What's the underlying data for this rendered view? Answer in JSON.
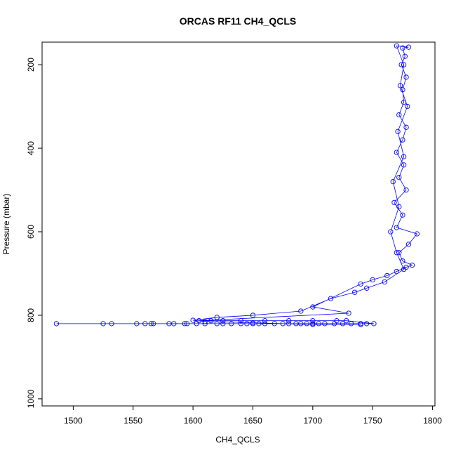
{
  "chart_data": {
    "type": "scatter-line",
    "title": "ORCAS RF11 CH4_QCLS",
    "x_label": "CH4_QCLS",
    "y_label": "Pressure (mbar)",
    "color": "#0000ff",
    "x": [
      1486,
      1525,
      1532,
      1553,
      1560,
      1565,
      1567,
      1580,
      1584,
      1593,
      1595,
      1603,
      1610,
      1620,
      1625,
      1632,
      1640,
      1645,
      1650,
      1655,
      1660,
      1668,
      1675,
      1680,
      1686,
      1690,
      1695,
      1700,
      1705,
      1710,
      1718,
      1725,
      1732,
      1740,
      1745,
      1751,
      1728,
      1720,
      1700,
      1680,
      1660,
      1640,
      1625,
      1615,
      1605,
      1730,
      1700,
      1740,
      1750,
      1762,
      1770,
      1778,
      1783,
      1775,
      1772,
      1780,
      1787,
      1770,
      1775,
      1768,
      1778,
      1772,
      1776,
      1770,
      1775,
      1778,
      1772,
      1776,
      1775,
      1778,
      1774,
      1777,
      1775,
      1780,
      1770,
      1776,
      1773,
      1779,
      1771,
      1776,
      1767,
      1772,
      1765,
      1770,
      1776,
      1760,
      1745,
      1735,
      1715,
      1690,
      1650,
      1620,
      1600,
      1610,
      1650,
      1700,
      1740
    ],
    "values": [
      820,
      820,
      820,
      820,
      820,
      820,
      820,
      820,
      820,
      820,
      820,
      820,
      820,
      820,
      820,
      820,
      820,
      820,
      820,
      820,
      820,
      820,
      820,
      820,
      820,
      820,
      820,
      820,
      820,
      820,
      820,
      820,
      820,
      820,
      820,
      820,
      813,
      813,
      813,
      813,
      813,
      813,
      813,
      813,
      813,
      795,
      780,
      725,
      715,
      705,
      695,
      685,
      680,
      670,
      650,
      630,
      605,
      590,
      560,
      530,
      500,
      470,
      440,
      410,
      380,
      350,
      320,
      290,
      260,
      230,
      200,
      180,
      160,
      158,
      155,
      200,
      250,
      300,
      360,
      420,
      480,
      540,
      600,
      650,
      690,
      720,
      735,
      745,
      760,
      790,
      800,
      805,
      812,
      815,
      818,
      822,
      822
    ],
    "xlim": [
      1474,
      1802
    ],
    "ylim": [
      1017,
      146
    ],
    "xticks": [
      1500,
      1550,
      1600,
      1650,
      1700,
      1750,
      1800
    ],
    "yticks": [
      200,
      400,
      600,
      800,
      1000
    ]
  }
}
